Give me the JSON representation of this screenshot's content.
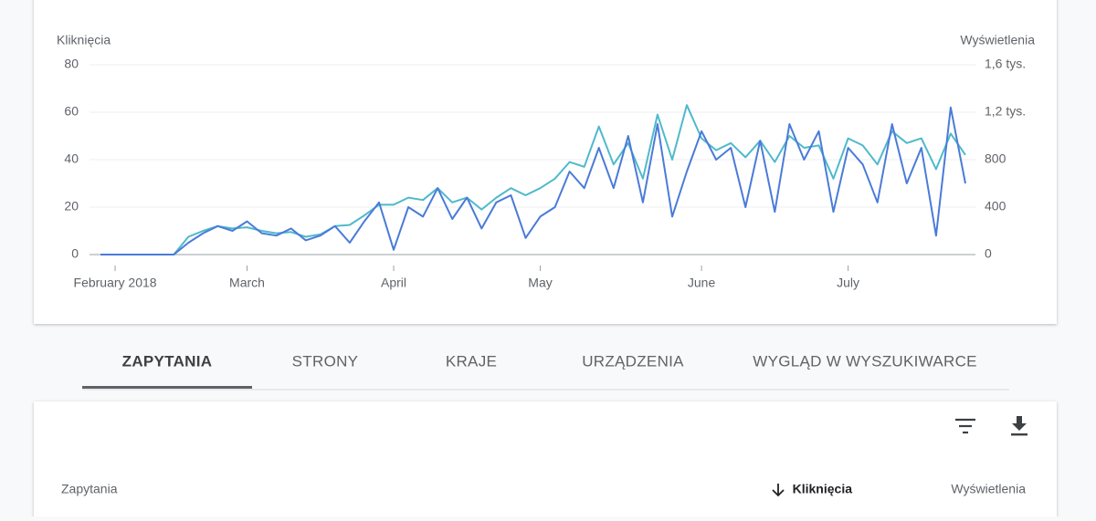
{
  "chart_data": {
    "type": "line",
    "y_label": "Kliknięcia",
    "y2_label": "Wyświetlenia",
    "categories": [
      null,
      "February 2018",
      null,
      null,
      null,
      null,
      null,
      null,
      null,
      null,
      "March",
      null,
      null,
      null,
      null,
      null,
      null,
      null,
      null,
      null,
      "April",
      null,
      null,
      null,
      null,
      null,
      null,
      null,
      null,
      null,
      "May",
      null,
      null,
      null,
      null,
      null,
      null,
      null,
      null,
      null,
      null,
      "June",
      null,
      null,
      null,
      null,
      null,
      null,
      null,
      null,
      null,
      "July",
      null,
      null,
      null,
      null,
      null,
      null,
      null,
      null
    ],
    "series": [
      {
        "color": "#4a7bd8",
        "axis": "y",
        "values": [
          0,
          0,
          0,
          0,
          0,
          0,
          5,
          9,
          12,
          10,
          14,
          9,
          8,
          11,
          6,
          8,
          12,
          5,
          14,
          22,
          2,
          20,
          16,
          28,
          15,
          24,
          11,
          22,
          25,
          7,
          16,
          20,
          35,
          28,
          45,
          28,
          50,
          22,
          55,
          16,
          35,
          52,
          40,
          45,
          20,
          48,
          18,
          55,
          40,
          52,
          18,
          45,
          38,
          22,
          55,
          30,
          45,
          8,
          62,
          30
        ]
      },
      {
        "color": "#4fb9cc",
        "axis": "y2",
        "values": [
          0,
          0,
          0,
          0,
          0,
          0,
          150,
          200,
          240,
          220,
          230,
          200,
          180,
          190,
          150,
          170,
          240,
          250,
          330,
          420,
          420,
          480,
          460,
          560,
          440,
          480,
          380,
          480,
          560,
          500,
          560,
          640,
          780,
          740,
          1080,
          760,
          940,
          640,
          1180,
          800,
          1260,
          980,
          880,
          940,
          820,
          960,
          780,
          1000,
          900,
          920,
          640,
          980,
          920,
          760,
          1040,
          940,
          980,
          720,
          1020,
          840
        ]
      }
    ],
    "ylim": [
      0,
      80
    ],
    "yticks": [
      0,
      20,
      40,
      60,
      80
    ],
    "y2lim": [
      0,
      1600
    ],
    "y2ticks": [
      0,
      400,
      800,
      {
        "value": 1200,
        "label": "1,2 tys."
      },
      {
        "value": 1600,
        "label": "1,6 tys."
      }
    ],
    "grid": true
  },
  "tabs": [
    "ZAPYTANIA",
    "STRONY",
    "KRAJE",
    "URZĄDZENIA",
    "WYGLĄD W WYSZUKIWARCE"
  ],
  "table": {
    "columns": [
      "Zapytania",
      "Kliknięcia",
      "Wyświetlenia"
    ]
  }
}
